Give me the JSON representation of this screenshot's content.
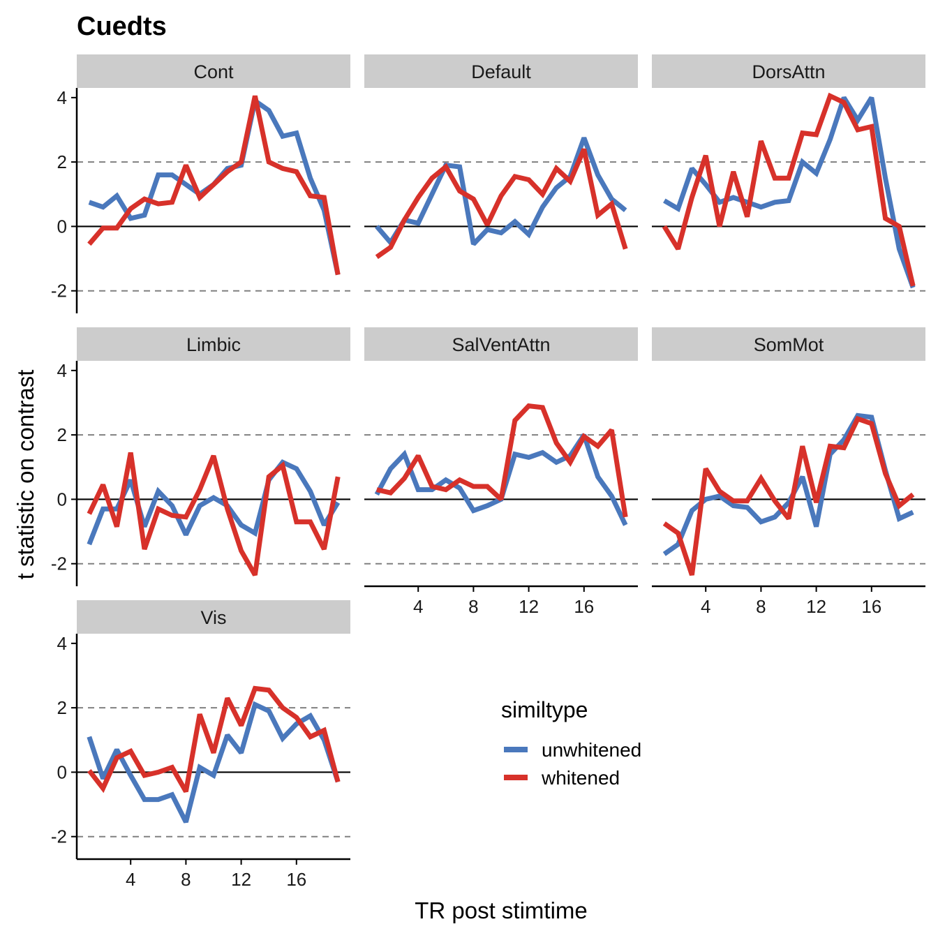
{
  "chart_data": {
    "type": "line",
    "title": "Cuedts",
    "xlabel": "TR post stimtime",
    "ylabel": "t statistic on contrast",
    "xlim": [
      0.1,
      19.9
    ],
    "ylim": [
      -2.7,
      4.3
    ],
    "x_ticks": [
      4,
      8,
      12,
      16
    ],
    "y_ticks": [
      -2,
      0,
      2,
      4
    ],
    "y_tick_labels": [
      "-2",
      "0",
      "2",
      "4"
    ],
    "reference_lines": {
      "solid": 0,
      "dashed": [
        2,
        -2
      ]
    },
    "legend": {
      "title": "similtype",
      "entries": [
        {
          "name": "unwhitened",
          "color": "#4a78bc"
        },
        {
          "name": "whitened",
          "color": "#d7312a"
        }
      ]
    },
    "x": [
      1,
      2,
      3,
      4,
      5,
      6,
      7,
      8,
      9,
      10,
      11,
      12,
      13,
      14,
      15,
      16,
      17,
      18,
      19
    ],
    "panels": [
      {
        "name": "Cont",
        "series": [
          {
            "name": "unwhitened",
            "values": [
              0.75,
              0.6,
              0.95,
              0.25,
              0.35,
              1.6,
              1.6,
              1.3,
              1.0,
              1.3,
              1.8,
              1.9,
              3.9,
              3.6,
              2.8,
              2.9,
              1.5,
              0.5,
              -1.5
            ]
          },
          {
            "name": "whitened",
            "values": [
              -0.55,
              -0.05,
              -0.05,
              0.55,
              0.85,
              0.7,
              0.75,
              1.9,
              0.9,
              1.3,
              1.7,
              2.0,
              4.05,
              2.0,
              1.8,
              1.7,
              0.95,
              0.9,
              -1.5
            ]
          }
        ]
      },
      {
        "name": "Default",
        "series": [
          {
            "name": "unwhitened",
            "values": [
              0.0,
              -0.5,
              0.2,
              0.1,
              1.0,
              1.9,
              1.85,
              -0.55,
              -0.1,
              -0.2,
              0.15,
              -0.25,
              0.6,
              1.2,
              1.55,
              2.75,
              1.6,
              0.85,
              0.5
            ]
          },
          {
            "name": "whitened",
            "values": [
              -0.95,
              -0.65,
              0.2,
              0.9,
              1.5,
              1.85,
              1.1,
              0.85,
              0.05,
              0.95,
              1.55,
              1.45,
              1.0,
              1.8,
              1.4,
              2.4,
              0.35,
              0.7,
              -0.7
            ]
          }
        ]
      },
      {
        "name": "DorsAttn",
        "series": [
          {
            "name": "unwhitened",
            "values": [
              0.8,
              0.55,
              1.8,
              1.3,
              0.75,
              0.9,
              0.75,
              0.6,
              0.75,
              0.8,
              2.0,
              1.65,
              2.7,
              4.0,
              3.3,
              4.0,
              1.5,
              -0.7,
              -1.9
            ]
          },
          {
            "name": "whitened",
            "values": [
              0.0,
              -0.7,
              0.9,
              2.2,
              0.0,
              1.7,
              0.3,
              2.65,
              1.5,
              1.5,
              2.9,
              2.85,
              4.05,
              3.85,
              3.0,
              3.1,
              0.25,
              0.0,
              -1.85
            ]
          }
        ]
      },
      {
        "name": "Limbic",
        "series": [
          {
            "name": "unwhitened",
            "values": [
              -1.4,
              -0.3,
              -0.3,
              0.6,
              -0.85,
              0.25,
              -0.2,
              -1.1,
              -0.2,
              0.05,
              -0.2,
              -0.8,
              -1.05,
              0.6,
              1.15,
              0.95,
              0.25,
              -0.8,
              -0.1
            ]
          },
          {
            "name": "whitened",
            "values": [
              -0.45,
              0.45,
              -0.85,
              1.45,
              -1.55,
              -0.3,
              -0.5,
              -0.55,
              0.3,
              1.35,
              -0.3,
              -1.6,
              -2.35,
              0.7,
              1.05,
              -0.7,
              -0.7,
              -1.55,
              0.7
            ]
          }
        ]
      },
      {
        "name": "SalVentAttn",
        "series": [
          {
            "name": "unwhitened",
            "values": [
              0.15,
              0.95,
              1.4,
              0.3,
              0.3,
              0.6,
              0.35,
              -0.35,
              -0.2,
              0.0,
              1.4,
              1.3,
              1.45,
              1.15,
              1.35,
              2.0,
              0.7,
              0.1,
              -0.8
            ]
          },
          {
            "name": "whitened",
            "values": [
              0.3,
              0.2,
              0.65,
              1.35,
              0.4,
              0.3,
              0.6,
              0.4,
              0.4,
              0.0,
              2.45,
              2.9,
              2.85,
              1.75,
              1.15,
              1.95,
              1.65,
              2.15,
              -0.55
            ]
          }
        ]
      },
      {
        "name": "SomMot",
        "series": [
          {
            "name": "unwhitened",
            "values": [
              -1.7,
              -1.4,
              -0.35,
              0.0,
              0.1,
              -0.2,
              -0.25,
              -0.7,
              -0.55,
              -0.1,
              0.7,
              -0.85,
              1.4,
              1.85,
              2.6,
              2.55,
              0.9,
              -0.6,
              -0.4
            ]
          },
          {
            "name": "whitened",
            "values": [
              -0.75,
              -1.05,
              -2.35,
              0.95,
              0.25,
              -0.05,
              -0.05,
              0.65,
              -0.05,
              -0.6,
              1.65,
              -0.1,
              1.65,
              1.6,
              2.5,
              2.35,
              0.8,
              -0.2,
              0.15
            ]
          }
        ]
      },
      {
        "name": "Vis",
        "series": [
          {
            "name": "unwhitened",
            "values": [
              1.1,
              -0.2,
              0.7,
              -0.1,
              -0.85,
              -0.85,
              -0.7,
              -1.55,
              0.15,
              -0.1,
              1.15,
              0.6,
              2.1,
              1.9,
              1.05,
              1.5,
              1.75,
              1.0,
              -0.3
            ]
          },
          {
            "name": "whitened",
            "values": [
              0.05,
              -0.5,
              0.45,
              0.65,
              -0.1,
              0.0,
              0.15,
              -0.6,
              1.8,
              0.6,
              2.3,
              1.45,
              2.6,
              2.55,
              2.0,
              1.7,
              1.1,
              1.3,
              -0.3
            ]
          }
        ]
      }
    ]
  }
}
